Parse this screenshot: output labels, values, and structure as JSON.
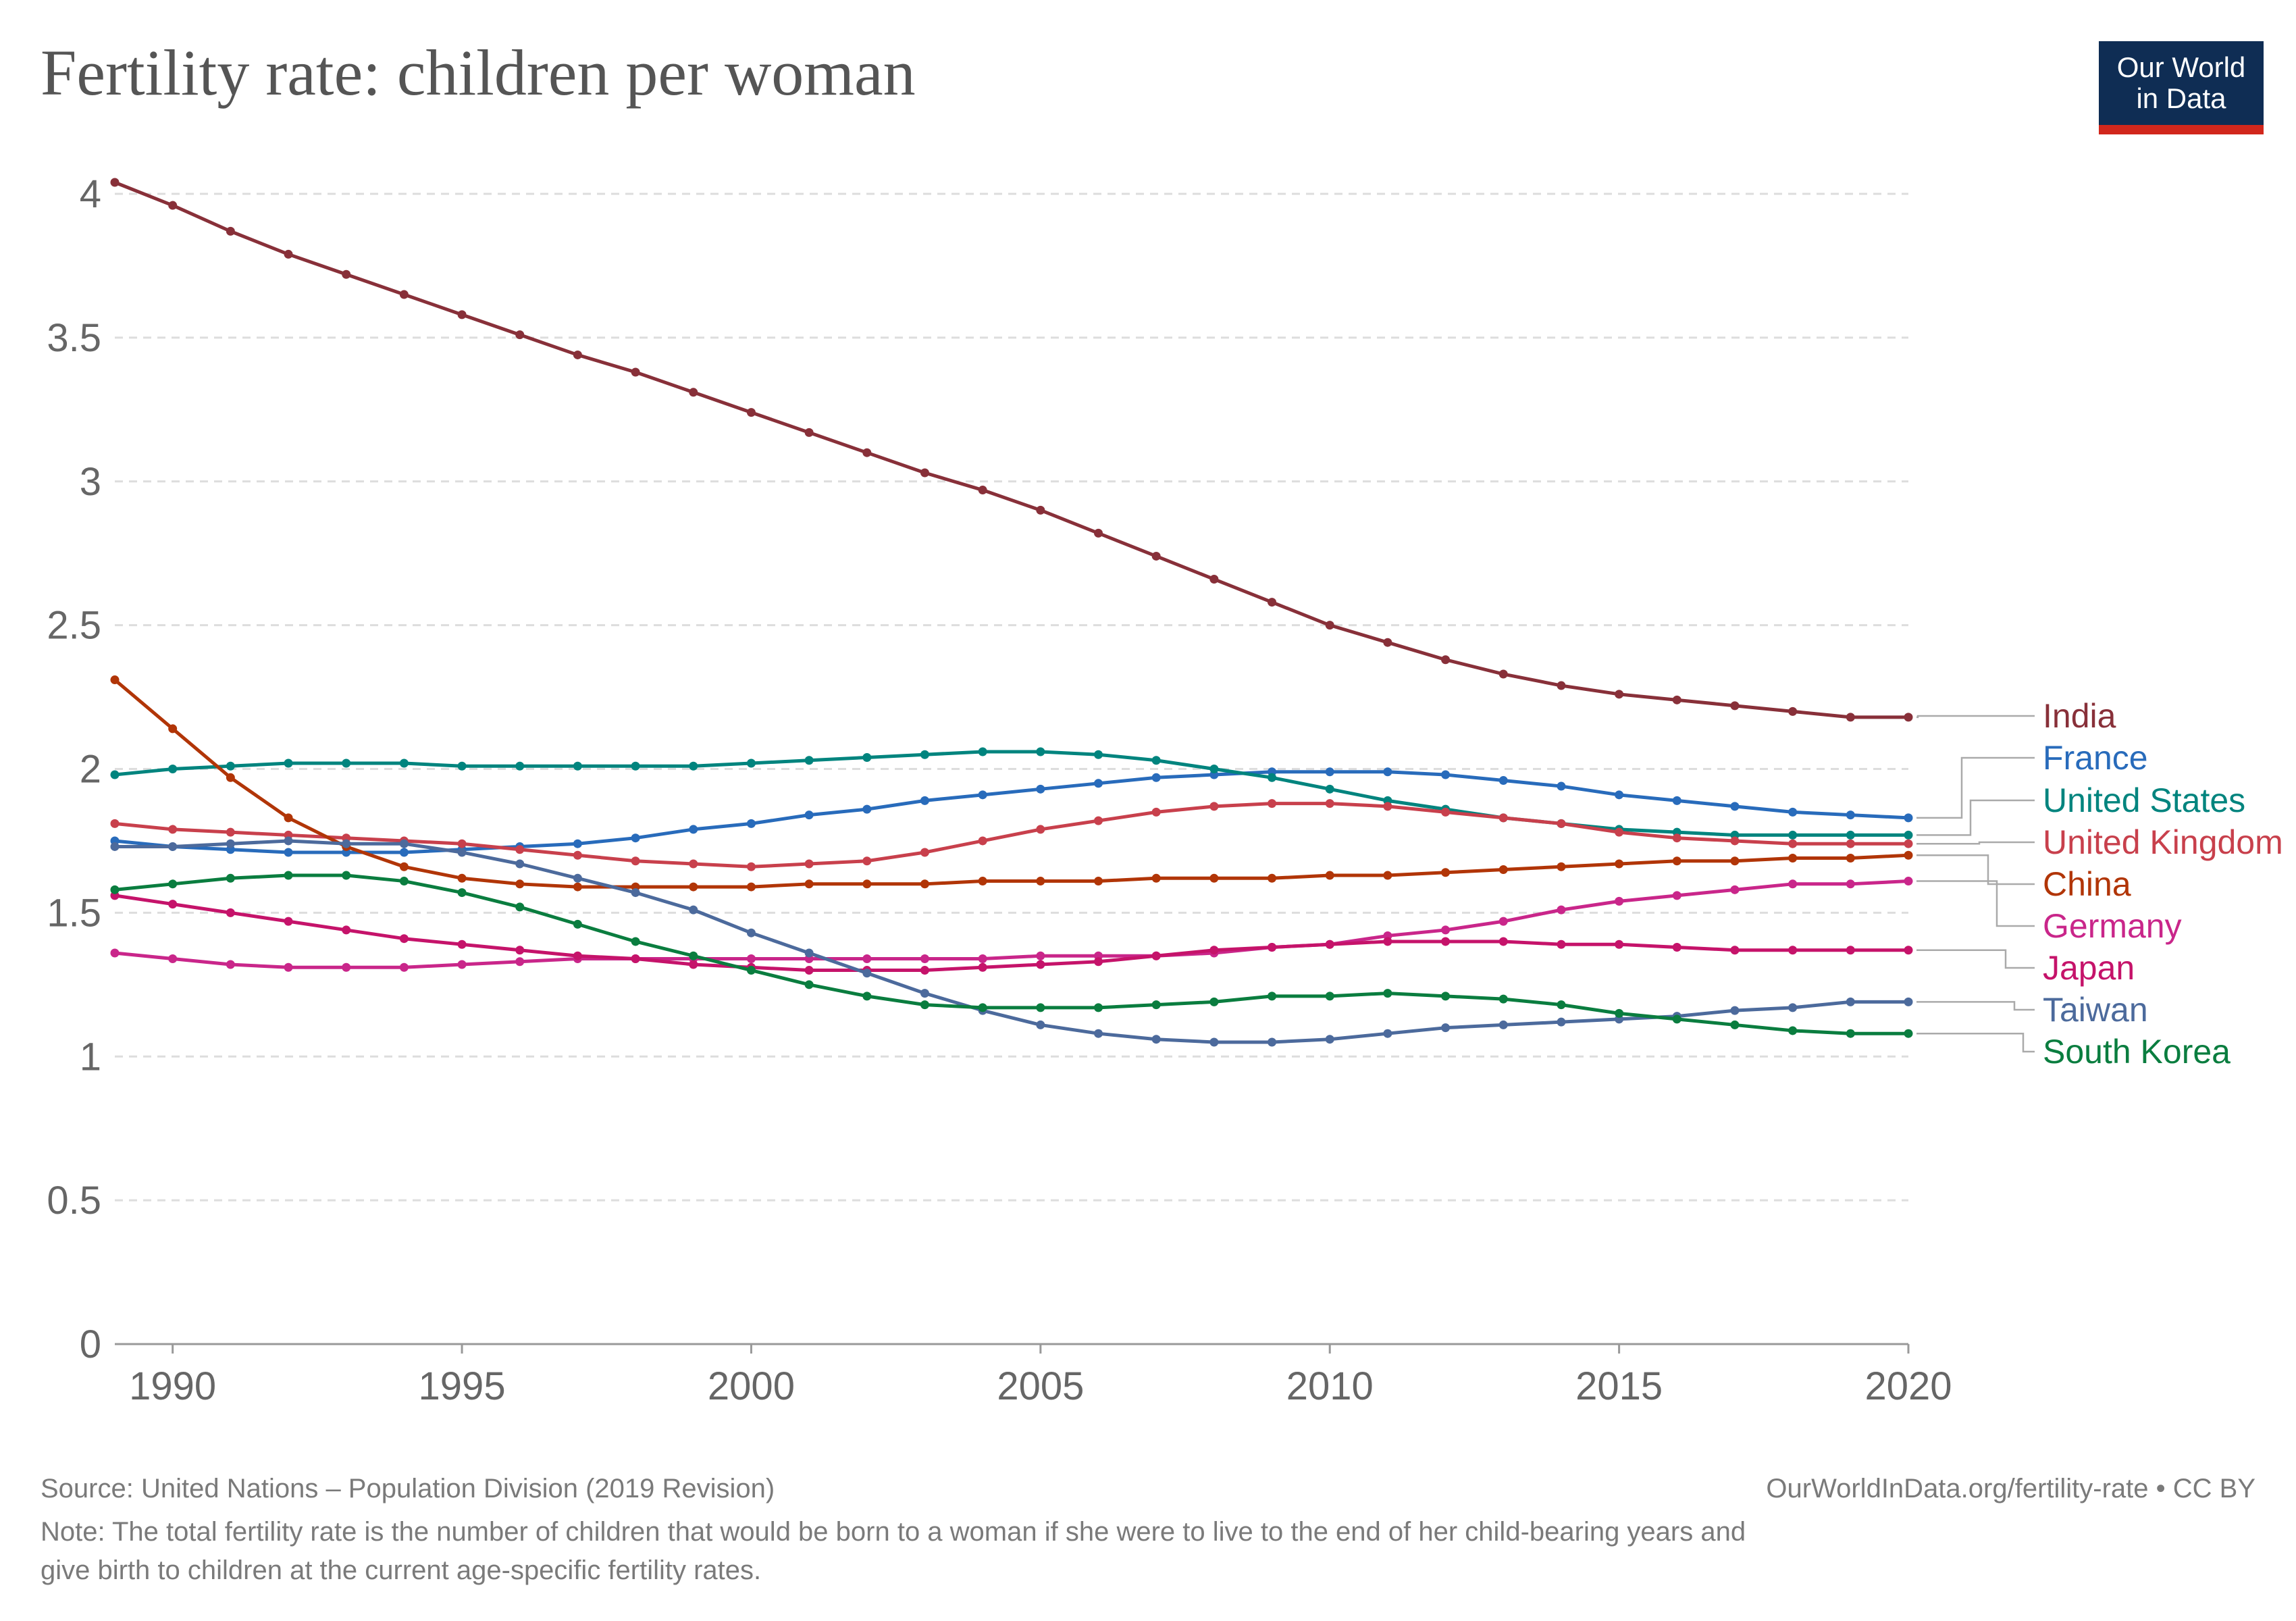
{
  "header": {
    "title": "Fertility rate: children per woman",
    "logo_line1": "Our World",
    "logo_line2": "in Data"
  },
  "footer": {
    "source": "Source: United Nations – Population Division (2019 Revision)",
    "url": "OurWorldInData.org/fertility-rate • CC BY",
    "note_line1": "Note: The total fertility rate is the number of children that would be born to a woman if she were to live to the end of her child-bearing years and",
    "note_line2": "give birth to children at the current age-specific fertility rates."
  },
  "chart_data": {
    "type": "line",
    "title": "Fertility rate: children per woman",
    "xlabel": "",
    "ylabel": "",
    "xlim": [
      1989,
      2020
    ],
    "ylim": [
      0,
      4
    ],
    "x_ticks": [
      1990,
      1995,
      2000,
      2005,
      2010,
      2015,
      2020
    ],
    "y_ticks": [
      0,
      0.5,
      1,
      1.5,
      2,
      2.5,
      3,
      3.5,
      4
    ],
    "y_tick_labels": [
      "0",
      "0.5",
      "1",
      "1.5",
      "2",
      "2.5",
      "3",
      "3.5",
      "4"
    ],
    "grid": "horizontal dashed",
    "legend": "right, line-end labels",
    "x": [
      1989,
      1990,
      1991,
      1992,
      1993,
      1994,
      1995,
      1996,
      1997,
      1998,
      1999,
      2000,
      2001,
      2002,
      2003,
      2004,
      2005,
      2006,
      2007,
      2008,
      2009,
      2010,
      2011,
      2012,
      2013,
      2014,
      2015,
      2016,
      2017,
      2018,
      2019,
      2020
    ],
    "series": [
      {
        "name": "India",
        "color": "#883039",
        "values": [
          4.04,
          3.96,
          3.87,
          3.79,
          3.72,
          3.65,
          3.58,
          3.51,
          3.44,
          3.38,
          3.31,
          3.24,
          3.17,
          3.1,
          3.03,
          2.97,
          2.9,
          2.82,
          2.74,
          2.66,
          2.58,
          2.5,
          2.44,
          2.38,
          2.33,
          2.29,
          2.26,
          2.24,
          2.22,
          2.2,
          2.18,
          2.18
        ]
      },
      {
        "name": "France",
        "color": "#286bbb",
        "values": [
          1.75,
          1.73,
          1.72,
          1.71,
          1.71,
          1.71,
          1.72,
          1.73,
          1.74,
          1.76,
          1.79,
          1.81,
          1.84,
          1.86,
          1.89,
          1.91,
          1.93,
          1.95,
          1.97,
          1.98,
          1.99,
          1.99,
          1.99,
          1.98,
          1.96,
          1.94,
          1.91,
          1.89,
          1.87,
          1.85,
          1.84,
          1.83
        ]
      },
      {
        "name": "United States",
        "color": "#00847e",
        "values": [
          1.98,
          2.0,
          2.01,
          2.02,
          2.02,
          2.02,
          2.01,
          2.01,
          2.01,
          2.01,
          2.01,
          2.02,
          2.03,
          2.04,
          2.05,
          2.06,
          2.06,
          2.05,
          2.03,
          2.0,
          1.97,
          1.93,
          1.89,
          1.86,
          1.83,
          1.81,
          1.79,
          1.78,
          1.77,
          1.77,
          1.77,
          1.77
        ]
      },
      {
        "name": "United Kingdom",
        "color": "#c8404c",
        "values": [
          1.81,
          1.79,
          1.78,
          1.77,
          1.76,
          1.75,
          1.74,
          1.72,
          1.7,
          1.68,
          1.67,
          1.66,
          1.67,
          1.68,
          1.71,
          1.75,
          1.79,
          1.82,
          1.85,
          1.87,
          1.88,
          1.88,
          1.87,
          1.85,
          1.83,
          1.81,
          1.78,
          1.76,
          1.75,
          1.74,
          1.74,
          1.74
        ]
      },
      {
        "name": "China",
        "color": "#b13507",
        "values": [
          2.31,
          2.14,
          1.97,
          1.83,
          1.73,
          1.66,
          1.62,
          1.6,
          1.59,
          1.59,
          1.59,
          1.59,
          1.6,
          1.6,
          1.6,
          1.61,
          1.61,
          1.61,
          1.62,
          1.62,
          1.62,
          1.63,
          1.63,
          1.64,
          1.65,
          1.66,
          1.67,
          1.68,
          1.68,
          1.69,
          1.69,
          1.7
        ]
      },
      {
        "name": "Germany",
        "color": "#c9268a",
        "values": [
          1.36,
          1.34,
          1.32,
          1.31,
          1.31,
          1.31,
          1.32,
          1.33,
          1.34,
          1.34,
          1.34,
          1.34,
          1.34,
          1.34,
          1.34,
          1.34,
          1.35,
          1.35,
          1.35,
          1.36,
          1.38,
          1.39,
          1.42,
          1.44,
          1.47,
          1.51,
          1.54,
          1.56,
          1.58,
          1.6,
          1.6,
          1.61
        ]
      },
      {
        "name": "Japan",
        "color": "#c5136a",
        "values": [
          1.56,
          1.53,
          1.5,
          1.47,
          1.44,
          1.41,
          1.39,
          1.37,
          1.35,
          1.34,
          1.32,
          1.31,
          1.3,
          1.3,
          1.3,
          1.31,
          1.32,
          1.33,
          1.35,
          1.37,
          1.38,
          1.39,
          1.4,
          1.4,
          1.4,
          1.39,
          1.39,
          1.38,
          1.37,
          1.37,
          1.37,
          1.37
        ]
      },
      {
        "name": "Taiwan",
        "color": "#4c6a9c",
        "values": [
          1.73,
          1.73,
          1.74,
          1.75,
          1.74,
          1.74,
          1.71,
          1.67,
          1.62,
          1.57,
          1.51,
          1.43,
          1.36,
          1.29,
          1.22,
          1.16,
          1.11,
          1.08,
          1.06,
          1.05,
          1.05,
          1.06,
          1.08,
          1.1,
          1.11,
          1.12,
          1.13,
          1.14,
          1.16,
          1.17,
          1.19,
          1.19
        ]
      },
      {
        "name": "South Korea",
        "color": "#0a7d3f",
        "values": [
          1.58,
          1.6,
          1.62,
          1.63,
          1.63,
          1.61,
          1.57,
          1.52,
          1.46,
          1.4,
          1.35,
          1.3,
          1.25,
          1.21,
          1.18,
          1.17,
          1.17,
          1.17,
          1.18,
          1.19,
          1.21,
          1.21,
          1.22,
          1.21,
          1.2,
          1.18,
          1.15,
          1.13,
          1.11,
          1.09,
          1.08,
          1.08
        ]
      }
    ],
    "legend_labels": [
      {
        "name": "India",
        "color": "#883039"
      },
      {
        "name": "France",
        "color": "#286bbb"
      },
      {
        "name": "United States",
        "color": "#00847e"
      },
      {
        "name": "United Kingdom",
        "color": "#c8404c"
      },
      {
        "name": "China",
        "color": "#b13507"
      },
      {
        "name": "Germany",
        "color": "#c9268a"
      },
      {
        "name": "Japan",
        "color": "#c5136a"
      },
      {
        "name": "Taiwan",
        "color": "#4c6a9c"
      },
      {
        "name": "South Korea",
        "color": "#0a7d3f"
      }
    ]
  }
}
